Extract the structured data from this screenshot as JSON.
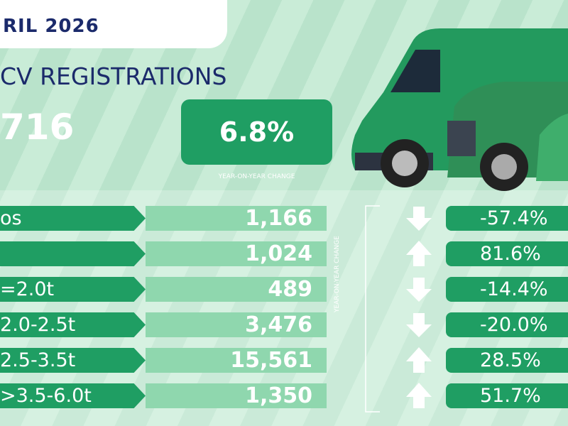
{
  "header": {
    "month": "RIL 2026",
    "title": "CV REGISTRATIONS",
    "total": "716",
    "change": "6.8%",
    "change_caption": "YEAR-ON-YEAR CHANGE"
  },
  "side_caption": "YEAR-ON-YEAR CHANGE",
  "rows": [
    {
      "label": "os",
      "value": "1,166",
      "change": "-57.4%"
    },
    {
      "value": "1,024",
      "change": "81.6%"
    },
    {
      "label": "=2.0t",
      "value": "489",
      "change": "-14.4%"
    },
    {
      "label": "2.0-2.5t",
      "value": "3,476",
      "change": "-20.0%"
    },
    {
      "label": "2.5-3.5t",
      "value": "15,561",
      "change": "28.5%"
    },
    {
      "label": ">3.5-6.0t",
      "value": "1,350",
      "change": "51.7%"
    }
  ]
}
